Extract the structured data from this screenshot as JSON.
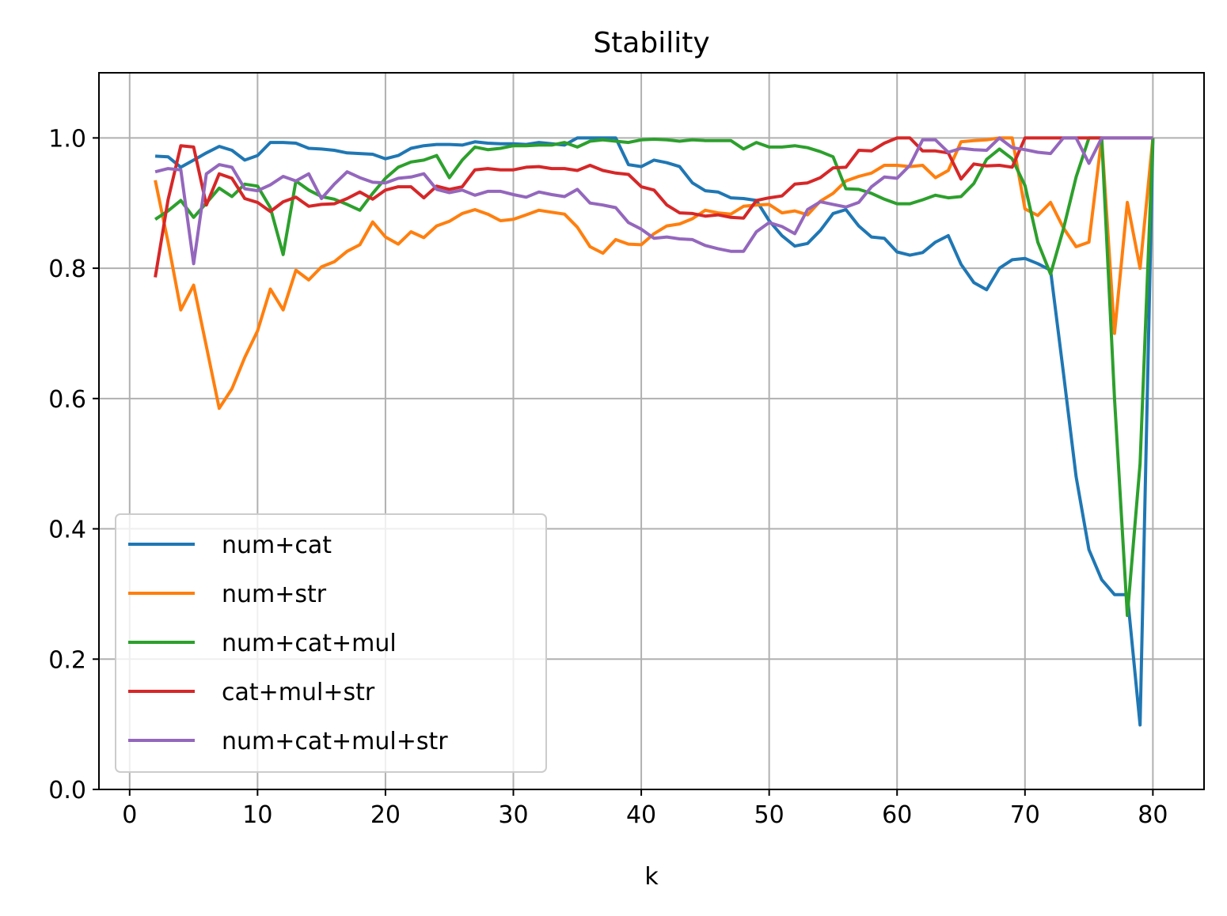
{
  "chart_data": {
    "type": "line",
    "title": "Stability",
    "xlabel": "k",
    "ylabel": "",
    "xlim": [
      -2.4,
      84.0
    ],
    "ylim": [
      0.0,
      1.1
    ],
    "xticks": [
      0,
      10,
      20,
      30,
      40,
      50,
      60,
      70,
      80
    ],
    "yticks": [
      0.0,
      0.2,
      0.4,
      0.6,
      0.8,
      1.0
    ],
    "xtick_labels": [
      "0",
      "10",
      "20",
      "30",
      "40",
      "50",
      "60",
      "70",
      "80"
    ],
    "ytick_labels": [
      "0.0",
      "0.2",
      "0.4",
      "0.6",
      "0.8",
      "1.0"
    ],
    "grid": true,
    "legend_position": "lower-left",
    "x": [
      2,
      3,
      4,
      5,
      6,
      7,
      8,
      9,
      10,
      11,
      12,
      13,
      14,
      15,
      16,
      17,
      18,
      19,
      20,
      21,
      22,
      23,
      24,
      25,
      26,
      27,
      28,
      29,
      30,
      31,
      32,
      33,
      34,
      35,
      36,
      37,
      38,
      39,
      40,
      41,
      42,
      43,
      44,
      45,
      46,
      47,
      48,
      49,
      50,
      51,
      52,
      53,
      54,
      55,
      56,
      57,
      58,
      59,
      60,
      61,
      62,
      63,
      64,
      65,
      66,
      67,
      68,
      69,
      70,
      71,
      72,
      73,
      74,
      75,
      76,
      77,
      78,
      79,
      80
    ],
    "series": [
      {
        "name": "num+cat",
        "color": "#1f77b4",
        "values": [
          0.972,
          0.971,
          0.955,
          0.966,
          0.977,
          0.987,
          0.981,
          0.966,
          0.973,
          0.993,
          0.993,
          0.992,
          0.984,
          0.983,
          0.981,
          0.977,
          0.976,
          0.975,
          0.968,
          0.973,
          0.984,
          0.988,
          0.99,
          0.99,
          0.989,
          0.994,
          0.992,
          0.991,
          0.991,
          0.99,
          0.993,
          0.991,
          0.989,
          1.0,
          1.0,
          1.0,
          1.0,
          0.959,
          0.956,
          0.966,
          0.962,
          0.956,
          0.931,
          0.919,
          0.917,
          0.908,
          0.907,
          0.904,
          0.873,
          0.85,
          0.834,
          0.838,
          0.858,
          0.884,
          0.89,
          0.865,
          0.848,
          0.846,
          0.825,
          0.82,
          0.824,
          0.84,
          0.85,
          0.806,
          0.778,
          0.767,
          0.8,
          0.813,
          0.815,
          0.807,
          0.797,
          0.64,
          0.48,
          0.368,
          0.322,
          0.299,
          0.299,
          0.099,
          1.0
        ]
      },
      {
        "name": "num+str",
        "color": "#ff7f0e",
        "values": [
          0.935,
          0.84,
          0.736,
          0.774,
          0.68,
          0.585,
          0.615,
          0.663,
          0.704,
          0.768,
          0.736,
          0.797,
          0.782,
          0.802,
          0.81,
          0.826,
          0.836,
          0.871,
          0.848,
          0.837,
          0.856,
          0.847,
          0.865,
          0.872,
          0.884,
          0.89,
          0.883,
          0.873,
          0.875,
          0.882,
          0.889,
          0.886,
          0.883,
          0.863,
          0.833,
          0.823,
          0.844,
          0.837,
          0.836,
          0.853,
          0.865,
          0.868,
          0.876,
          0.889,
          0.885,
          0.883,
          0.895,
          0.897,
          0.898,
          0.885,
          0.888,
          0.882,
          0.903,
          0.915,
          0.934,
          0.941,
          0.946,
          0.958,
          0.958,
          0.956,
          0.958,
          0.939,
          0.95,
          0.994,
          0.996,
          0.997,
          1.0,
          1.0,
          0.891,
          0.881,
          0.901,
          0.862,
          0.833,
          0.84,
          1.0,
          0.7,
          0.901,
          0.8,
          1.0
        ]
      },
      {
        "name": "num+cat+mul",
        "color": "#2ca02c",
        "values": [
          0.875,
          0.888,
          0.904,
          0.878,
          0.9,
          0.923,
          0.91,
          0.929,
          0.926,
          0.893,
          0.821,
          0.934,
          0.92,
          0.91,
          0.906,
          0.898,
          0.889,
          0.915,
          0.938,
          0.955,
          0.963,
          0.966,
          0.973,
          0.939,
          0.966,
          0.986,
          0.982,
          0.984,
          0.988,
          0.988,
          0.989,
          0.989,
          0.993,
          0.986,
          0.995,
          0.997,
          0.995,
          0.993,
          0.997,
          0.998,
          0.997,
          0.995,
          0.997,
          0.996,
          0.996,
          0.996,
          0.983,
          0.993,
          0.986,
          0.986,
          0.988,
          0.985,
          0.979,
          0.971,
          0.922,
          0.921,
          0.915,
          0.906,
          0.899,
          0.899,
          0.905,
          0.912,
          0.908,
          0.91,
          0.93,
          0.967,
          0.983,
          0.968,
          0.927,
          0.84,
          0.791,
          0.86,
          0.94,
          1.0,
          1.0,
          0.6,
          0.267,
          0.5,
          1.0
        ]
      },
      {
        "name": "cat+mul+str",
        "color": "#d62728",
        "values": [
          0.786,
          0.905,
          0.988,
          0.986,
          0.897,
          0.945,
          0.938,
          0.907,
          0.901,
          0.887,
          0.902,
          0.909,
          0.895,
          0.898,
          0.899,
          0.907,
          0.917,
          0.906,
          0.92,
          0.925,
          0.925,
          0.908,
          0.926,
          0.921,
          0.925,
          0.951,
          0.953,
          0.951,
          0.951,
          0.955,
          0.956,
          0.953,
          0.953,
          0.95,
          0.958,
          0.95,
          0.946,
          0.944,
          0.925,
          0.92,
          0.897,
          0.885,
          0.884,
          0.88,
          0.882,
          0.878,
          0.877,
          0.904,
          0.908,
          0.911,
          0.929,
          0.931,
          0.939,
          0.954,
          0.955,
          0.981,
          0.98,
          0.992,
          1.0,
          1.0,
          0.98,
          0.98,
          0.977,
          0.937,
          0.96,
          0.957,
          0.958,
          0.955,
          1.0,
          1.0,
          1.0,
          1.0,
          1.0,
          1.0,
          1.0,
          1.0,
          1.0,
          1.0,
          1.0
        ]
      },
      {
        "name": "num+cat+mul+str",
        "color": "#9467bd",
        "values": [
          0.948,
          0.953,
          0.951,
          0.807,
          0.945,
          0.959,
          0.955,
          0.922,
          0.919,
          0.928,
          0.941,
          0.934,
          0.945,
          0.907,
          0.929,
          0.948,
          0.939,
          0.932,
          0.931,
          0.938,
          0.94,
          0.945,
          0.921,
          0.916,
          0.92,
          0.912,
          0.918,
          0.918,
          0.913,
          0.909,
          0.917,
          0.913,
          0.91,
          0.921,
          0.9,
          0.897,
          0.893,
          0.87,
          0.86,
          0.846,
          0.848,
          0.845,
          0.844,
          0.835,
          0.83,
          0.826,
          0.826,
          0.856,
          0.87,
          0.864,
          0.853,
          0.89,
          0.902,
          0.898,
          0.894,
          0.901,
          0.925,
          0.94,
          0.938,
          0.958,
          0.997,
          0.997,
          0.978,
          0.984,
          0.982,
          0.981,
          1.0,
          0.985,
          0.982,
          0.978,
          0.976,
          1.0,
          1.0,
          0.961,
          1.0,
          1.0,
          1.0,
          1.0,
          1.0
        ]
      }
    ]
  }
}
